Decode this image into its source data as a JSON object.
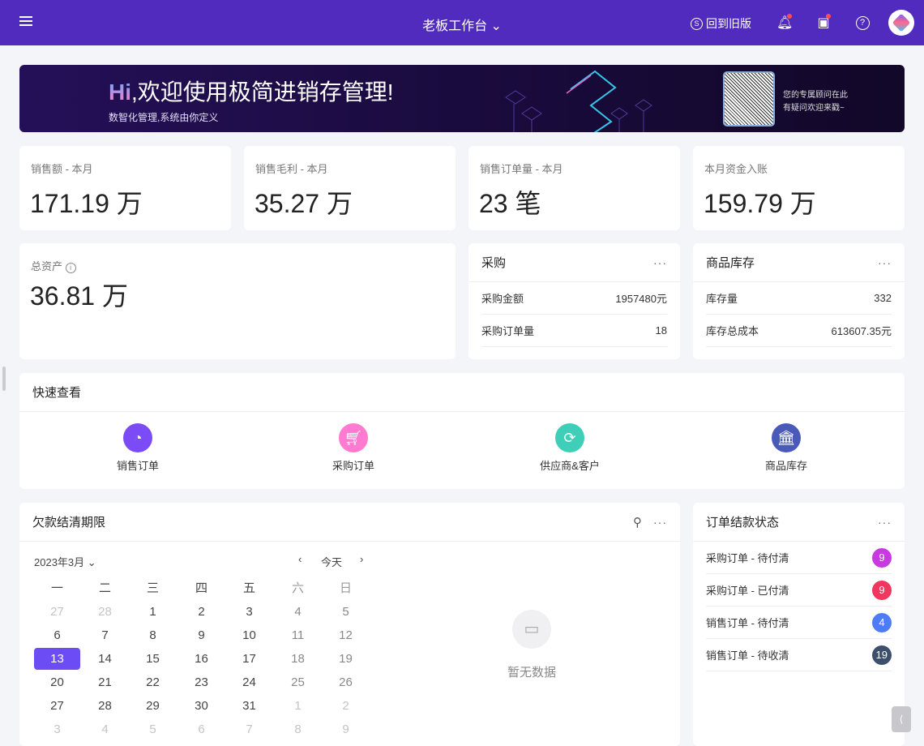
{
  "header": {
    "title": "老板工作台",
    "old_version": "回到旧版"
  },
  "banner": {
    "hi": "Hi",
    "greeting": ",欢迎使用极简进销存管理!",
    "subtitle": "数智化管理,系统由你定义",
    "qr_text_1": "您的专属顾问在此",
    "qr_text_2": "有疑问欢迎来戳~"
  },
  "kpis": [
    {
      "label": "销售额 - 本月",
      "value": "171.19 万"
    },
    {
      "label": "销售毛利 - 本月",
      "value": "35.27 万"
    },
    {
      "label": "销售订单量 - 本月",
      "value": "23 笔"
    },
    {
      "label": "本月资金入账",
      "value": "159.79 万"
    }
  ],
  "total_assets": {
    "label": "总资产",
    "value": "36.81 万"
  },
  "purchase": {
    "title": "采购",
    "rows": [
      {
        "label": "采购金额",
        "value": "1957480元"
      },
      {
        "label": "采购订单量",
        "value": "18"
      }
    ]
  },
  "inventory": {
    "title": "商品库存",
    "rows": [
      {
        "label": "库存量",
        "value": "332"
      },
      {
        "label": "库存总成本",
        "value": "613607.35元"
      }
    ]
  },
  "quick": {
    "title": "快速查看",
    "items": [
      {
        "label": "销售订单",
        "icon": "pie-chart-icon",
        "color": "#7b4cf5"
      },
      {
        "label": "采购订单",
        "icon": "cart-icon",
        "color": "#ff7ad0"
      },
      {
        "label": "供应商&客户",
        "icon": "refresh-icon",
        "color": "#3fcfb8"
      },
      {
        "label": "商品库存",
        "icon": "bank-icon",
        "color": "#4a5ab8"
      }
    ]
  },
  "debt": {
    "title": "欠款结清期限",
    "month": "2023年3月",
    "today": "今天",
    "empty": "暂无数据",
    "weekdays": [
      "一",
      "二",
      "三",
      "四",
      "五",
      "六",
      "日"
    ],
    "weeks": [
      [
        "27",
        "28",
        "1",
        "2",
        "3",
        "4",
        "5"
      ],
      [
        "6",
        "7",
        "8",
        "9",
        "10",
        "11",
        "12"
      ],
      [
        "13",
        "14",
        "15",
        "16",
        "17",
        "18",
        "19"
      ],
      [
        "20",
        "21",
        "22",
        "23",
        "24",
        "25",
        "26"
      ],
      [
        "27",
        "28",
        "29",
        "30",
        "31",
        "1",
        "2"
      ],
      [
        "3",
        "4",
        "5",
        "6",
        "7",
        "8",
        "9"
      ]
    ],
    "selected": "13",
    "accent": "#6c4cf5"
  },
  "order_status": {
    "title": "订单结款状态",
    "rows": [
      {
        "label": "采购订单 - 待付清",
        "count": "9",
        "color": "#c63adf"
      },
      {
        "label": "采购订单 - 已付清",
        "count": "9",
        "color": "#f2365d"
      },
      {
        "label": "销售订单 - 待付清",
        "count": "4",
        "color": "#4e7cf6"
      },
      {
        "label": "销售订单 - 待收清",
        "count": "19",
        "color": "#3c4f6b"
      }
    ]
  }
}
